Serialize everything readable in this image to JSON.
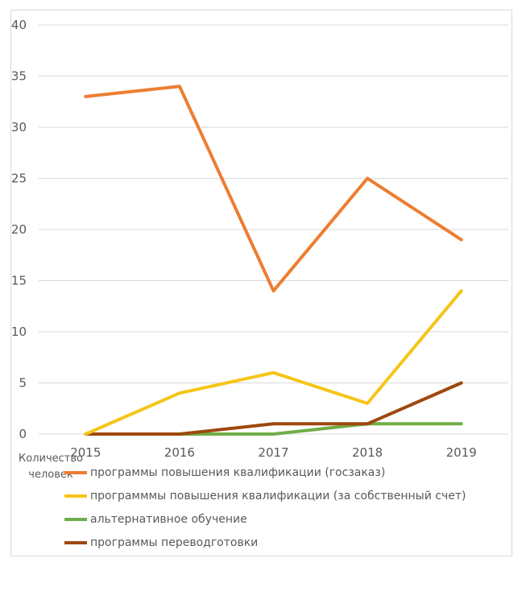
{
  "chart_data": {
    "type": "line",
    "categories": [
      "2015",
      "2016",
      "2017",
      "2018",
      "2019"
    ],
    "ylim": [
      0,
      40
    ],
    "yticks": [
      0,
      5,
      10,
      15,
      20,
      25,
      30,
      35,
      40
    ],
    "grid": true,
    "legend_position": "bottom",
    "ylabel": "Количество человек",
    "series": [
      {
        "name": "программы  повышения  квалификации  (госзаказ)",
        "color": "#ED7D31",
        "values": [
          33,
          34,
          14,
          25,
          19
        ]
      },
      {
        "name": "программмы  повышения  квалификации  (за  собственный  счет)",
        "color": "#F5C518",
        "values": [
          0,
          4,
          6,
          3,
          14
        ]
      },
      {
        "name": "альтернативное  обучение",
        "color": "#70AD47",
        "values": [
          0,
          0,
          0,
          1,
          1
        ]
      },
      {
        "name": "программы  переводготовки",
        "color": "#9E480E",
        "values": [
          0,
          0,
          1,
          1,
          5
        ]
      }
    ]
  }
}
